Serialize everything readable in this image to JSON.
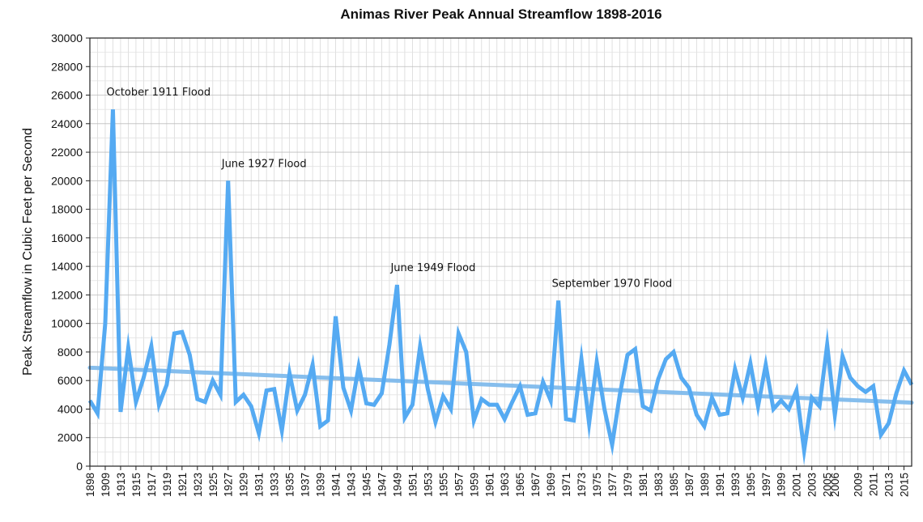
{
  "chart_data": {
    "type": "line",
    "title": "Animas River Peak Annual Streamflow 1898-2016",
    "xlabel": "",
    "ylabel": "Peak Streamflow in Cubic Feet per Second",
    "ylim": [
      0,
      30000
    ],
    "yticks": [
      0,
      2000,
      4000,
      6000,
      8000,
      10000,
      12000,
      14000,
      16000,
      18000,
      20000,
      22000,
      24000,
      26000,
      28000,
      30000
    ],
    "grid": true,
    "categories": [
      "1898",
      "1899",
      "1909",
      "1911",
      "1913",
      "1914",
      "1915",
      "1916",
      "1917",
      "1918",
      "1919",
      "1920",
      "1921",
      "1922",
      "1923",
      "1924",
      "1925",
      "1926",
      "1927",
      "1928",
      "1929",
      "1930",
      "1931",
      "1932",
      "1933",
      "1934",
      "1935",
      "1936",
      "1937",
      "1938",
      "1939",
      "1940",
      "1941",
      "1942",
      "1943",
      "1944",
      "1945",
      "1946",
      "1947",
      "1948",
      "1949",
      "1950",
      "1951",
      "1952",
      "1953",
      "1954",
      "1955",
      "1956",
      "1957",
      "1958",
      "1959",
      "1960",
      "1961",
      "1962",
      "1963",
      "1964",
      "1965",
      "1966",
      "1967",
      "1968",
      "1969",
      "1970",
      "1971",
      "1972",
      "1973",
      "1974",
      "1975",
      "1976",
      "1977",
      "1978",
      "1979",
      "1980",
      "1981",
      "1982",
      "1983",
      "1984",
      "1985",
      "1986",
      "1987",
      "1988",
      "1989",
      "1990",
      "1991",
      "1992",
      "1993",
      "1994",
      "1995",
      "1996",
      "1997",
      "1998",
      "1999",
      "2000",
      "2001",
      "2002",
      "2003",
      "2004",
      "2005",
      "2006",
      "2007",
      "2008",
      "2009",
      "2010",
      "2011",
      "2012",
      "2013",
      "2014",
      "2015",
      "2016"
    ],
    "x_tick_labels": [
      "1898",
      "1909",
      "1913",
      "1915",
      "1917",
      "1919",
      "1921",
      "1923",
      "1925",
      "1927",
      "1929",
      "1931",
      "1933",
      "1935",
      "1937",
      "1939",
      "1941",
      "1943",
      "1945",
      "1947",
      "1949",
      "1951",
      "1953",
      "1955",
      "1957",
      "1959",
      "1961",
      "1963",
      "1965",
      "1967",
      "1969",
      "1971",
      "1973",
      "1975",
      "1977",
      "1979",
      "1981",
      "1983",
      "1985",
      "1987",
      "1989",
      "1991",
      "1993",
      "1995",
      "1997",
      "1999",
      "2001",
      "2003",
      "2005",
      "2006",
      "2009",
      "2011",
      "2013",
      "2015"
    ],
    "series": [
      {
        "name": "Peak Annual Streamflow",
        "color": "#55aaf2",
        "values": [
          4600,
          3700,
          10000,
          25000,
          3800,
          8300,
          4500,
          6200,
          8400,
          4300,
          5700,
          9300,
          9400,
          7800,
          4700,
          4500,
          6000,
          5000,
          20000,
          4500,
          5000,
          4200,
          2300,
          5300,
          5400,
          2500,
          6500,
          3900,
          5000,
          7100,
          2800,
          3200,
          10500,
          5500,
          3900,
          7000,
          4400,
          4300,
          5100,
          8500,
          12700,
          3400,
          4300,
          8400,
          5400,
          3100,
          4900,
          4000,
          9300,
          8000,
          3200,
          4700,
          4300,
          4300,
          3300,
          4500,
          5600,
          3600,
          3700,
          5900,
          4600,
          11600,
          3300,
          3200,
          7500,
          3000,
          7300,
          4000,
          1500,
          5000,
          7800,
          8200,
          4200,
          3900,
          6100,
          7500,
          8000,
          6200,
          5500,
          3600,
          2800,
          4800,
          3600,
          3700,
          6800,
          4800,
          7200,
          4200,
          7100,
          4000,
          4600,
          4000,
          5300,
          1100,
          4800,
          4200,
          8500,
          3600,
          7700,
          6200,
          5600,
          5200,
          5600,
          2200,
          3000,
          5100,
          6700,
          5700
        ]
      },
      {
        "name": "Trend",
        "color": "#7ab8ec",
        "start_value": 6900,
        "end_value": 4450
      }
    ],
    "annotations": [
      {
        "text": "October 1911 Flood",
        "x": "1911",
        "y": 25000
      },
      {
        "text": "June 1927 Flood",
        "x": "1927",
        "y": 20000
      },
      {
        "text": "June 1949 Flood",
        "x": "1949",
        "y": 12700
      },
      {
        "text": "September 1970 Flood",
        "x": "1970",
        "y": 11600
      }
    ]
  }
}
